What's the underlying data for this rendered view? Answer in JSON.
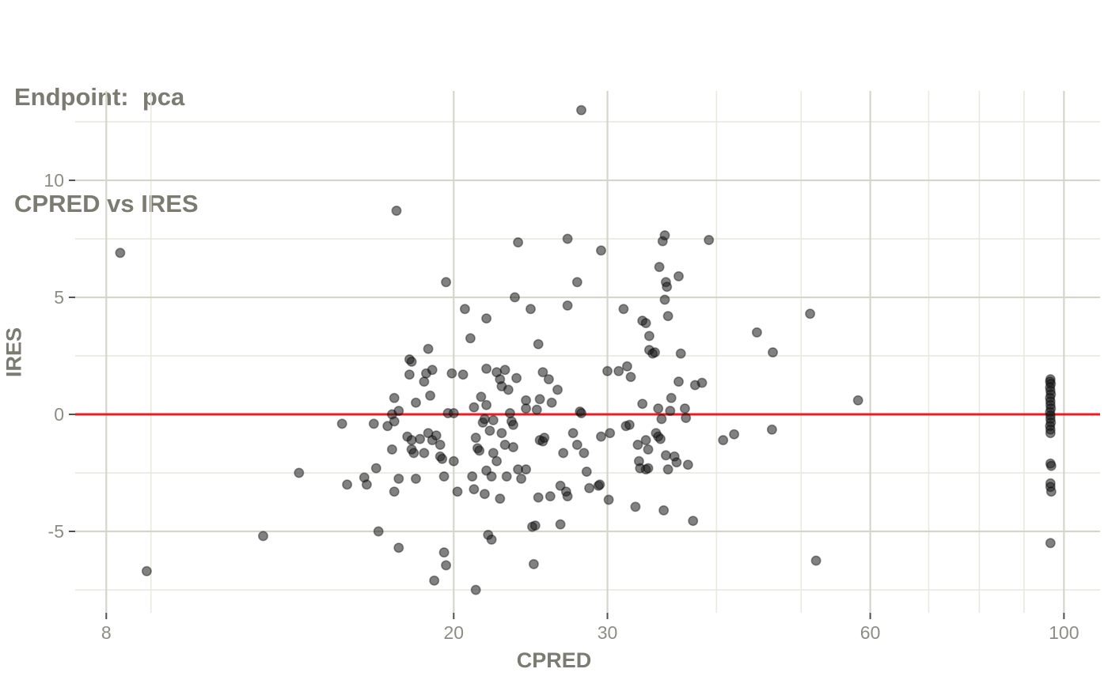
{
  "title": {
    "line1": "Endpoint:  pca",
    "line2": "CPRED vs IRES"
  },
  "colors": {
    "title_text": "#7c7b72",
    "tick_text": "#8e8d84",
    "major_grid": "#d5d5cb",
    "minor_grid": "#e9e9df",
    "tick_mark": "#4f4f4f",
    "reference_line": "#ed1c24",
    "point_fill": "rgba(25,25,25,0.55)",
    "point_stroke": "rgba(0,0,0,0.38)"
  },
  "chart_data": {
    "type": "scatter",
    "title": "Endpoint:  pca",
    "subtitle": "CPRED vs IRES",
    "xlabel": "CPRED",
    "ylabel": "IRES",
    "x_scale": "log10",
    "grid": "on",
    "legend": "none",
    "x_ticks": [
      8,
      20,
      30,
      60,
      100
    ],
    "x_minor_gridlines": [
      9,
      40,
      50,
      70,
      80,
      90
    ],
    "y_ticks": [
      -5,
      0,
      5,
      10
    ],
    "y_minor_gridlines": [
      -7.5,
      -2.5,
      2.5,
      7.5,
      12.5
    ],
    "xlim": [
      7.37,
      110.0
    ],
    "ylim": [
      -8.48,
      13.82
    ],
    "hline_y": 0,
    "points": [
      [
        8.3,
        6.9
      ],
      [
        8.9,
        -6.7
      ],
      [
        12.1,
        -5.2
      ],
      [
        13.3,
        -2.5
      ],
      [
        14.9,
        -0.4
      ],
      [
        15.1,
        -3.0
      ],
      [
        15.8,
        -2.7
      ],
      [
        15.9,
        -3.0
      ],
      [
        16.2,
        -0.4
      ],
      [
        16.3,
        -2.3
      ],
      [
        16.4,
        -5.0
      ],
      [
        16.8,
        -0.5
      ],
      [
        17.0,
        0.0
      ],
      [
        17.0,
        -1.5
      ],
      [
        17.1,
        0.7
      ],
      [
        17.1,
        -0.3
      ],
      [
        17.1,
        -3.3
      ],
      [
        17.2,
        8.7
      ],
      [
        17.3,
        0.15
      ],
      [
        17.3,
        -2.75
      ],
      [
        17.3,
        -5.7
      ],
      [
        17.7,
        -0.95
      ],
      [
        17.8,
        2.35
      ],
      [
        17.9,
        2.25
      ],
      [
        17.8,
        1.7
      ],
      [
        17.9,
        -1.1
      ],
      [
        17.9,
        -1.5
      ],
      [
        18.0,
        -1.65
      ],
      [
        18.1,
        0.5
      ],
      [
        18.1,
        -2.75
      ],
      [
        18.3,
        -1.05
      ],
      [
        18.5,
        1.4
      ],
      [
        18.5,
        -1.65
      ],
      [
        18.6,
        1.75
      ],
      [
        18.7,
        2.8
      ],
      [
        18.7,
        -0.8
      ],
      [
        18.8,
        0.8
      ],
      [
        18.9,
        1.9
      ],
      [
        18.9,
        -1.1
      ],
      [
        19.0,
        -7.1
      ],
      [
        19.1,
        -0.9
      ],
      [
        19.3,
        -1.3
      ],
      [
        19.3,
        -1.8
      ],
      [
        19.4,
        -1.9
      ],
      [
        19.5,
        -2.65
      ],
      [
        19.5,
        -5.9
      ],
      [
        19.6,
        5.65
      ],
      [
        19.6,
        -6.45
      ],
      [
        19.7,
        0.05
      ],
      [
        19.9,
        1.75
      ],
      [
        20.0,
        0.05
      ],
      [
        20.0,
        -2.0
      ],
      [
        20.2,
        -3.3
      ],
      [
        20.5,
        1.7
      ],
      [
        20.6,
        4.5
      ],
      [
        20.9,
        3.25
      ],
      [
        21.0,
        -2.65
      ],
      [
        21.1,
        0.3
      ],
      [
        21.1,
        -3.2
      ],
      [
        21.2,
        -1.0
      ],
      [
        21.2,
        -7.5
      ],
      [
        21.3,
        -1.45
      ],
      [
        21.4,
        -1.55
      ],
      [
        21.5,
        0.75
      ],
      [
        21.6,
        -0.35
      ],
      [
        21.7,
        -0.2
      ],
      [
        21.7,
        -3.4
      ],
      [
        21.8,
        1.95
      ],
      [
        21.8,
        4.1
      ],
      [
        21.8,
        0.4
      ],
      [
        21.8,
        -2.4
      ],
      [
        21.9,
        -5.15
      ],
      [
        22.0,
        -0.7
      ],
      [
        22.1,
        -2.65
      ],
      [
        22.1,
        -5.35
      ],
      [
        22.2,
        -0.25
      ],
      [
        22.2,
        -1.65
      ],
      [
        22.4,
        1.8
      ],
      [
        22.4,
        -2.0
      ],
      [
        22.6,
        1.5
      ],
      [
        22.6,
        -3.6
      ],
      [
        22.7,
        1.2
      ],
      [
        22.7,
        -0.8
      ],
      [
        22.9,
        1.9
      ],
      [
        22.9,
        -1.3
      ],
      [
        23.0,
        -2.65
      ],
      [
        23.1,
        1.05
      ],
      [
        23.2,
        0.05
      ],
      [
        23.3,
        -0.3
      ],
      [
        23.4,
        -0.45
      ],
      [
        23.4,
        -1.4
      ],
      [
        23.5,
        5.0
      ],
      [
        23.6,
        1.55
      ],
      [
        23.7,
        7.35
      ],
      [
        23.7,
        -2.35
      ],
      [
        23.9,
        -2.75
      ],
      [
        24.2,
        0.6
      ],
      [
        24.2,
        0.25
      ],
      [
        24.2,
        -2.35
      ],
      [
        24.5,
        4.5
      ],
      [
        24.6,
        -4.8
      ],
      [
        24.8,
        -4.75
      ],
      [
        24.7,
        -6.4
      ],
      [
        24.9,
        0.2
      ],
      [
        25.0,
        3.0
      ],
      [
        25.0,
        -3.55
      ],
      [
        25.1,
        0.65
      ],
      [
        25.1,
        -1.1
      ],
      [
        25.3,
        1.8
      ],
      [
        25.3,
        -1.15
      ],
      [
        25.4,
        -1.0
      ],
      [
        25.7,
        1.5
      ],
      [
        25.8,
        -3.5
      ],
      [
        25.9,
        0.5
      ],
      [
        26.3,
        1.05
      ],
      [
        26.5,
        -3.05
      ],
      [
        26.5,
        -4.7
      ],
      [
        26.7,
        -1.65
      ],
      [
        26.9,
        -3.3
      ],
      [
        27.0,
        7.5
      ],
      [
        27.0,
        4.65
      ],
      [
        27.0,
        -3.5
      ],
      [
        27.4,
        -0.8
      ],
      [
        27.7,
        5.65
      ],
      [
        27.7,
        -1.3
      ],
      [
        27.9,
        0.12
      ],
      [
        28.0,
        0.05
      ],
      [
        28.0,
        13.0
      ],
      [
        28.2,
        -1.65
      ],
      [
        28.4,
        -2.45
      ],
      [
        28.6,
        -3.15
      ],
      [
        29.3,
        -3.05
      ],
      [
        29.4,
        -3.0
      ],
      [
        29.5,
        7.0
      ],
      [
        29.5,
        -0.95
      ],
      [
        30.0,
        1.85
      ],
      [
        30.1,
        -3.65
      ],
      [
        30.2,
        -0.8
      ],
      [
        30.9,
        1.85
      ],
      [
        31.3,
        4.5
      ],
      [
        31.5,
        -0.5
      ],
      [
        31.6,
        2.05
      ],
      [
        31.8,
        -0.45
      ],
      [
        31.9,
        1.6
      ],
      [
        32.3,
        -3.95
      ],
      [
        32.5,
        -1.3
      ],
      [
        32.6,
        -2.0
      ],
      [
        32.7,
        -2.3
      ],
      [
        32.9,
        4.0
      ],
      [
        32.9,
        0.45
      ],
      [
        33.2,
        3.9
      ],
      [
        33.2,
        -1.1
      ],
      [
        33.2,
        -2.35
      ],
      [
        33.4,
        -1.5
      ],
      [
        33.4,
        -2.3
      ],
      [
        33.5,
        3.35
      ],
      [
        33.5,
        2.75
      ],
      [
        33.8,
        2.6
      ],
      [
        34.0,
        2.65
      ],
      [
        34.1,
        -0.8
      ],
      [
        34.3,
        0.25
      ],
      [
        34.3,
        -0.95
      ],
      [
        34.4,
        6.3
      ],
      [
        34.5,
        -1.05
      ],
      [
        34.6,
        -0.2
      ],
      [
        34.7,
        7.4
      ],
      [
        34.8,
        -4.1
      ],
      [
        34.9,
        7.65
      ],
      [
        34.9,
        4.9
      ],
      [
        35.0,
        5.65
      ],
      [
        35.1,
        5.45
      ],
      [
        35.0,
        -1.75
      ],
      [
        35.2,
        4.2
      ],
      [
        35.2,
        -2.35
      ],
      [
        35.4,
        0.15
      ],
      [
        35.5,
        0.7
      ],
      [
        35.8,
        -1.8
      ],
      [
        36.0,
        -2.05
      ],
      [
        36.2,
        5.9
      ],
      [
        36.2,
        1.4
      ],
      [
        36.4,
        2.6
      ],
      [
        36.8,
        0.25
      ],
      [
        36.9,
        -0.15
      ],
      [
        37.1,
        -2.15
      ],
      [
        37.6,
        -4.55
      ],
      [
        37.8,
        1.25
      ],
      [
        38.5,
        1.35
      ],
      [
        39.2,
        7.45
      ],
      [
        40.7,
        -1.1
      ],
      [
        41.9,
        -0.85
      ],
      [
        44.5,
        3.5
      ],
      [
        46.3,
        -0.65
      ],
      [
        46.4,
        2.65
      ],
      [
        51.2,
        4.3
      ],
      [
        52.0,
        -6.25
      ],
      [
        58.1,
        0.6
      ],
      [
        96.5,
        1.5
      ],
      [
        96.4,
        1.4
      ],
      [
        96.6,
        1.3
      ],
      [
        96.4,
        1.15
      ],
      [
        96.5,
        1.0
      ],
      [
        96.6,
        0.85
      ],
      [
        96.4,
        0.7
      ],
      [
        96.5,
        0.55
      ],
      [
        96.5,
        0.4
      ],
      [
        96.6,
        0.25
      ],
      [
        96.4,
        0.1
      ],
      [
        96.5,
        -0.05
      ],
      [
        96.5,
        -0.2
      ],
      [
        96.6,
        -0.35
      ],
      [
        96.4,
        -0.5
      ],
      [
        96.5,
        -0.65
      ],
      [
        96.5,
        -0.8
      ],
      [
        96.5,
        -2.1
      ],
      [
        96.7,
        -2.2
      ],
      [
        96.5,
        -2.95
      ],
      [
        96.5,
        -3.1
      ],
      [
        96.7,
        -3.3
      ],
      [
        96.5,
        -5.5
      ]
    ]
  }
}
